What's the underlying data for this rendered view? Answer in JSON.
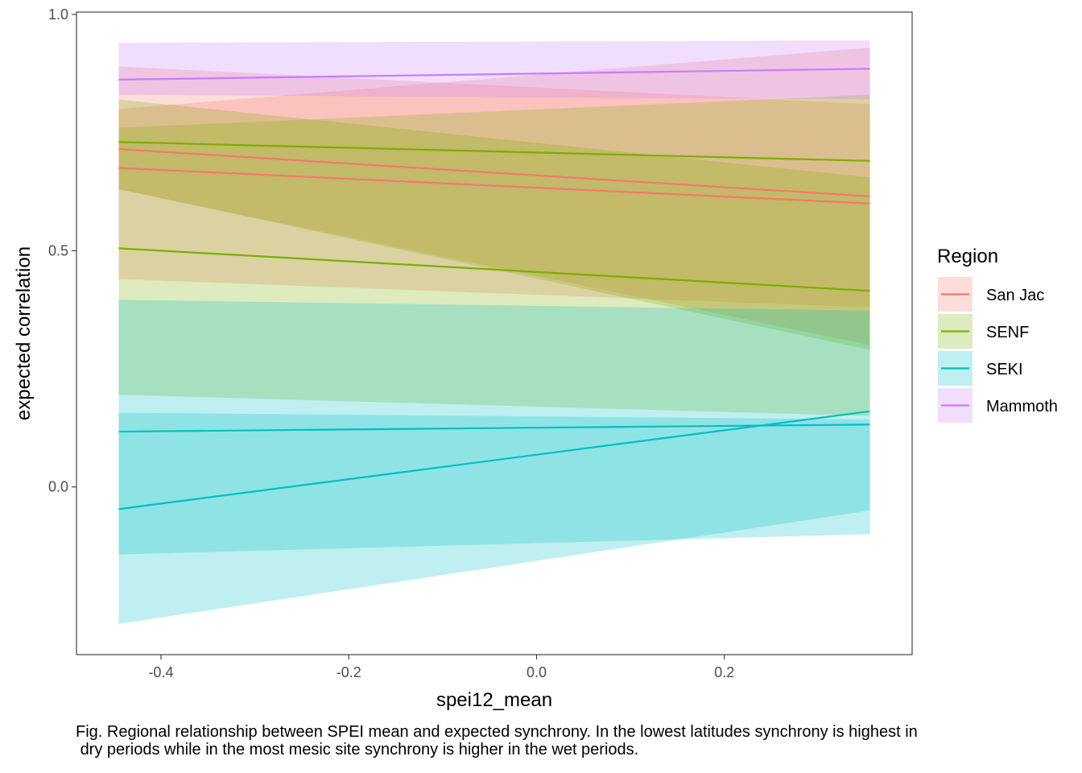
{
  "chart_data": {
    "type": "line",
    "title": "",
    "xlabel": "spei12_mean",
    "ylabel": "expected correlation",
    "xlim": [
      -0.49,
      0.4
    ],
    "ylim": [
      -0.355,
      1.005
    ],
    "x_ticks": [
      -0.4,
      -0.2,
      0.0,
      0.2
    ],
    "x_tick_labels": [
      "-0.4",
      "-0.2",
      "0.0",
      "0.2"
    ],
    "y_ticks": [
      0.0,
      0.5,
      1.0
    ],
    "y_tick_labels": [
      "0.0",
      "0.5",
      "1.0"
    ],
    "grid": false,
    "legend": {
      "title": "Region",
      "position": "right",
      "entries": [
        {
          "name": "San Jac",
          "color": "#F8766D"
        },
        {
          "name": "SENF",
          "color": "#7CAE00"
        },
        {
          "name": "SEKI",
          "color": "#00BFC4"
        },
        {
          "name": "Mammoth",
          "color": "#C77CFF"
        }
      ]
    },
    "ribbon_opacity": 0.25,
    "series": [
      {
        "region": "San Jac",
        "color": "#F8766D",
        "x": [
          -0.445,
          0.355
        ],
        "y": [
          0.715,
          0.615
        ],
        "lower": [
          0.63,
          0.3
        ],
        "upper": [
          0.8,
          0.93
        ]
      },
      {
        "region": "San Jac",
        "color": "#F8766D",
        "x": [
          -0.445,
          0.355
        ],
        "y": [
          0.675,
          0.6
        ],
        "lower": [
          0.44,
          0.38
        ],
        "upper": [
          0.89,
          0.81
        ]
      },
      {
        "region": "SENF",
        "color": "#7CAE00",
        "x": [
          -0.445,
          0.355
        ],
        "y": [
          0.73,
          0.69
        ],
        "lower": [
          0.63,
          0.29
        ],
        "upper": [
          0.76,
          0.83
        ]
      },
      {
        "region": "SENF",
        "color": "#7CAE00",
        "x": [
          -0.445,
          0.355
        ],
        "y": [
          0.505,
          0.415
        ],
        "lower": [
          0.195,
          0.15
        ],
        "upper": [
          0.82,
          0.655
        ]
      },
      {
        "region": "SEKI",
        "color": "#00BFC4",
        "x": [
          -0.445,
          0.355
        ],
        "y": [
          0.117,
          0.132
        ],
        "lower": [
          -0.143,
          -0.1
        ],
        "upper": [
          0.396,
          0.373
        ]
      },
      {
        "region": "SEKI",
        "color": "#00BFC4",
        "x": [
          -0.445,
          0.355
        ],
        "y": [
          -0.047,
          0.16
        ],
        "lower": [
          -0.29,
          -0.05
        ],
        "upper": [
          0.157,
          0.143
        ]
      },
      {
        "region": "Mammoth",
        "color": "#C77CFF",
        "x": [
          -0.445,
          0.355
        ],
        "y": [
          0.862,
          0.885
        ],
        "lower": [
          0.83,
          0.82
        ],
        "upper": [
          0.94,
          0.945
        ]
      }
    ]
  },
  "caption": "Fig. Regional relationship between SPEI mean and expected synchrony. In the lowest latitudes synchrony is highest in\n dry periods while in the most mesic site synchrony is higher in the wet periods."
}
